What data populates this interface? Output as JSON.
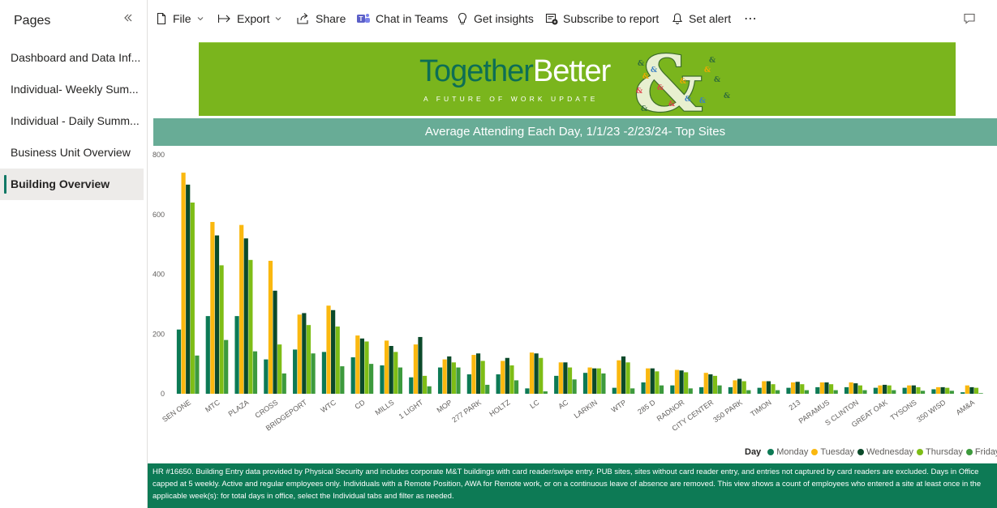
{
  "sidebar": {
    "title": "Pages",
    "items": [
      {
        "label": "Dashboard and Data Inf..."
      },
      {
        "label": "Individual- Weekly Sum..."
      },
      {
        "label": "Individual - Daily Summ..."
      },
      {
        "label": "Business Unit Overview"
      },
      {
        "label": "Building Overview",
        "active": true
      }
    ]
  },
  "toolbar": {
    "file": "File",
    "export": "Export",
    "share": "Share",
    "chat_in_teams": "Chat in Teams",
    "get_insights": "Get insights",
    "subscribe": "Subscribe to report",
    "set_alert": "Set alert",
    "more": "⋯"
  },
  "banner": {
    "title_part1": "Together",
    "title_part2": "Better",
    "subtitle": "A FUTURE OF WORK UPDATE",
    "amp_symbol": "&"
  },
  "chart_title": "Average Attending Each Day, 1/1/23 -2/23/24- Top Sites",
  "colors": {
    "Monday": "#0d7a55",
    "Tuesday": "#fab80f",
    "Wednesday": "#0b4a2a",
    "Thursday": "#7ebd16",
    "Friday": "#3d9a3d",
    "banner_green": "#7ab51d",
    "title_bar": "#68ac96",
    "footnote_bg": "#0d7a55"
  },
  "chart_data": {
    "type": "bar",
    "ylim": [
      0,
      800
    ],
    "yticks": [
      0,
      200,
      400,
      600,
      800
    ],
    "grid": false,
    "legend_title": "Day",
    "legend_position": "bottom-right",
    "categories": [
      "SEN ONE",
      "MTC",
      "PLAZA",
      "CROSS",
      "BRIDGEPORT",
      "WTC",
      "CD",
      "MILLS",
      "1 LIGHT",
      "MOP",
      "277 PARK",
      "HOLTZ",
      "LC",
      "AC",
      "LARKIN",
      "WTP",
      "285 D",
      "RADNOR",
      "CITY CENTER",
      "350 PARK",
      "TIMON",
      "213",
      "PARAMUS",
      "S CLINTON",
      "GREAT OAK",
      "TYSONS",
      "350 WISD",
      "AM&A"
    ],
    "series": [
      {
        "name": "Monday",
        "values": [
          215,
          260,
          260,
          115,
          148,
          140,
          122,
          95,
          55,
          88,
          65,
          65,
          18,
          60,
          70,
          20,
          38,
          28,
          22,
          22,
          20,
          20,
          22,
          22,
          20,
          20,
          15,
          5
        ]
      },
      {
        "name": "Tuesday",
        "values": [
          740,
          575,
          565,
          445,
          265,
          295,
          195,
          178,
          165,
          115,
          130,
          110,
          138,
          105,
          88,
          112,
          85,
          80,
          70,
          45,
          42,
          38,
          38,
          38,
          28,
          28,
          22,
          28
        ]
      },
      {
        "name": "Wednesday",
        "values": [
          700,
          530,
          520,
          345,
          270,
          280,
          185,
          160,
          190,
          125,
          135,
          120,
          135,
          105,
          85,
          125,
          85,
          78,
          65,
          50,
          42,
          40,
          38,
          35,
          30,
          28,
          22,
          22
        ]
      },
      {
        "name": "Thursday",
        "values": [
          640,
          430,
          448,
          165,
          230,
          225,
          175,
          140,
          60,
          105,
          110,
          95,
          120,
          88,
          85,
          105,
          75,
          72,
          60,
          42,
          32,
          32,
          32,
          28,
          28,
          22,
          20,
          20
        ]
      },
      {
        "name": "Friday",
        "values": [
          128,
          180,
          142,
          68,
          135,
          92,
          100,
          88,
          25,
          88,
          30,
          45,
          8,
          48,
          68,
          18,
          28,
          18,
          28,
          12,
          12,
          12,
          12,
          12,
          12,
          10,
          10,
          2
        ]
      }
    ]
  },
  "footnote": "HR #16650. Building Entry data provided by Physical Security and includes corporate M&T buildings with card reader/swipe entry. PUB sites, sites without card reader entry, and entries not captured by card readers are excluded. Days in Office capped at 5 weekly. Active and regular employees only. Individuals with a Remote Position, AWA for Remote work, or on a continuous leave of absence are removed. This view shows a count of employees who entered a site at least once in the applicable week(s): for total days in office, select the Individual tabs and filter as needed."
}
